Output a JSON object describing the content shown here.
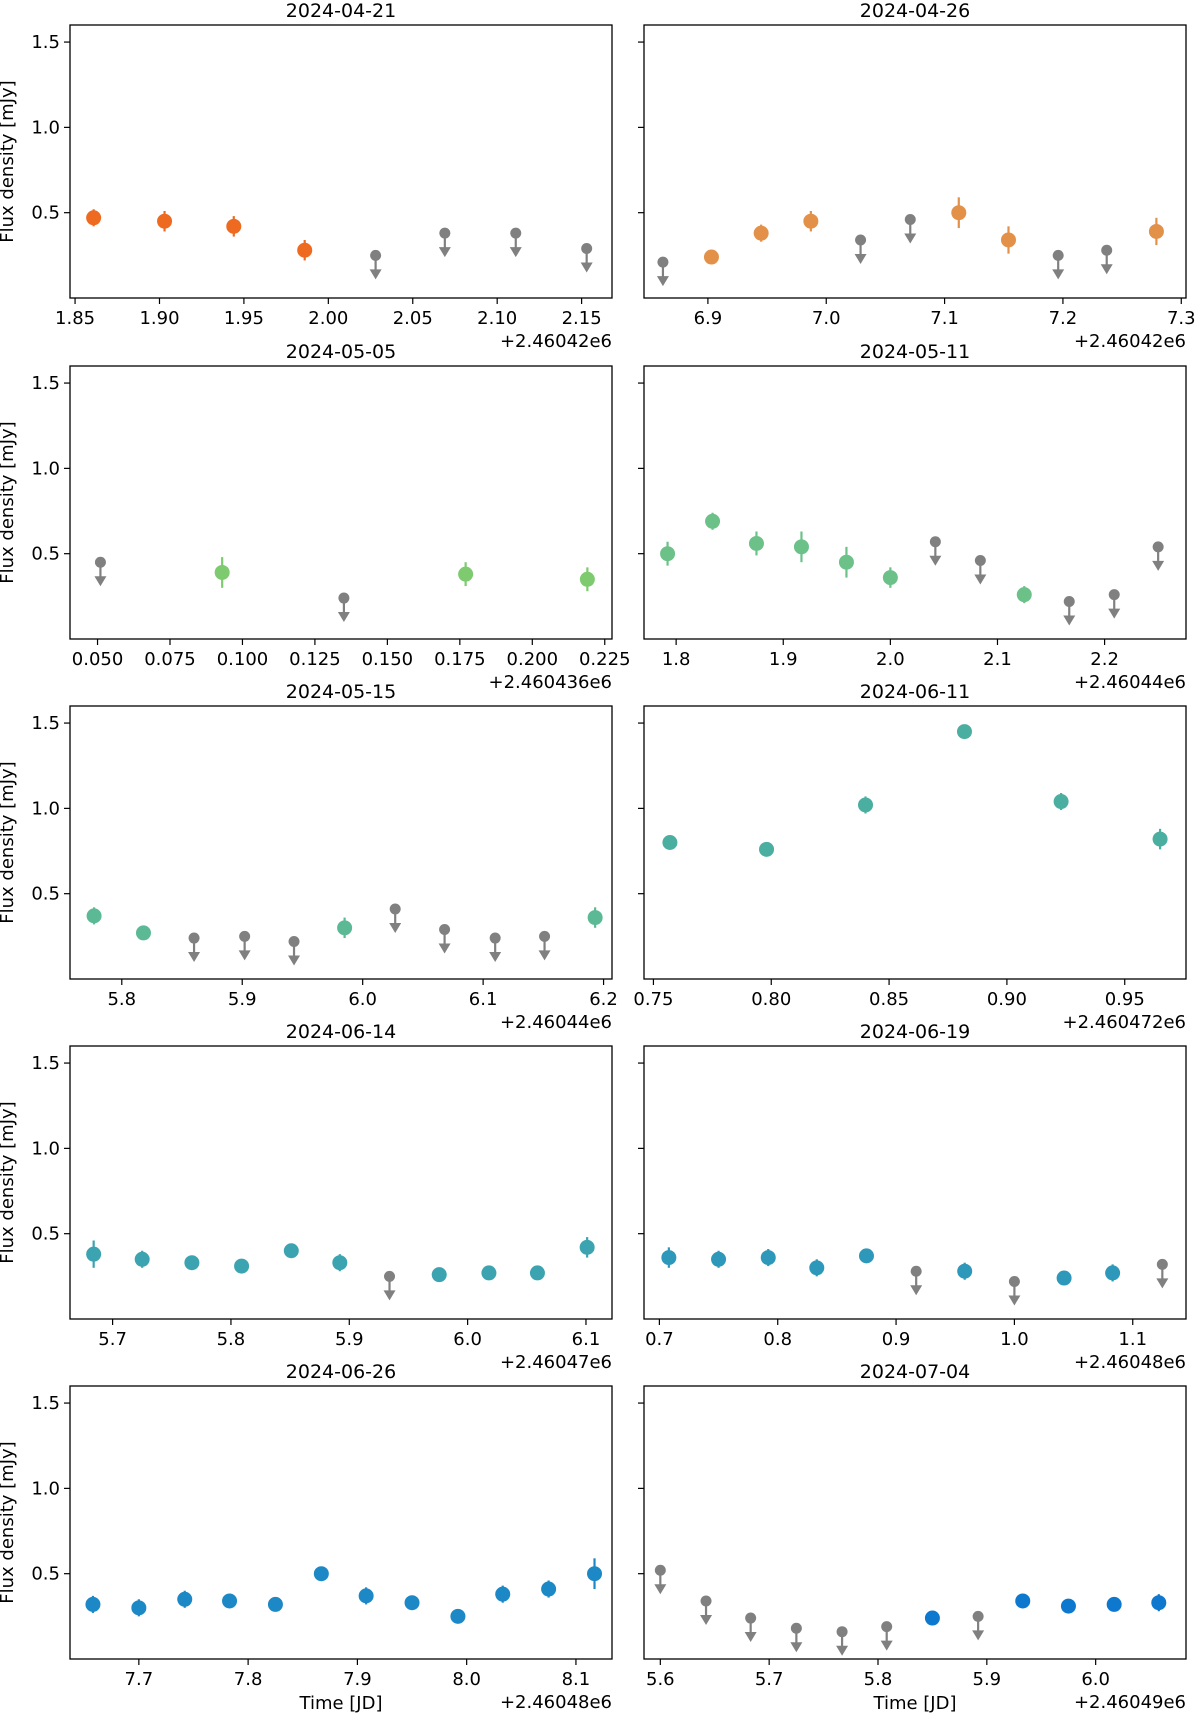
{
  "chart_data": [
    {
      "type": "scatter",
      "title": "2024-04-21",
      "xlabel": "",
      "ylabel": "Flux density [mJy]",
      "offset_label": "+2.46042e6",
      "ylim": [
        0.0,
        1.6
      ],
      "yticks": [
        0.5,
        1.0,
        1.5
      ],
      "ytick_labels": [
        "0.5",
        "1.0",
        "1.5"
      ],
      "xlim": [
        1.847,
        2.168
      ],
      "xticks": [
        1.85,
        1.9,
        1.95,
        2.0,
        2.05,
        2.1,
        2.15
      ],
      "xtick_labels": [
        "1.85",
        "1.90",
        "1.95",
        "2.00",
        "2.05",
        "2.10",
        "2.15"
      ],
      "color": "#ee6a21",
      "detections": [
        {
          "x": 1.861,
          "y": 0.47,
          "err": 0.05
        },
        {
          "x": 1.903,
          "y": 0.45,
          "err": 0.06
        },
        {
          "x": 1.944,
          "y": 0.42,
          "err": 0.06
        },
        {
          "x": 1.986,
          "y": 0.28,
          "err": 0.06
        }
      ],
      "upper_limits": [
        {
          "x": 2.028,
          "y": 0.25
        },
        {
          "x": 2.069,
          "y": 0.38
        },
        {
          "x": 2.111,
          "y": 0.38
        },
        {
          "x": 2.153,
          "y": 0.29
        }
      ]
    },
    {
      "type": "scatter",
      "title": "2024-04-26",
      "xlabel": "",
      "ylabel": "",
      "offset_label": "+2.46042e6",
      "ylim": [
        0.0,
        1.6
      ],
      "yticks": [
        0.5,
        1.0,
        1.5
      ],
      "ytick_labels": [
        "",
        "",
        ""
      ],
      "xlim": [
        6.846,
        7.304
      ],
      "xticks": [
        6.9,
        7.0,
        7.1,
        7.2,
        7.3
      ],
      "xtick_labels": [
        "6.9",
        "7.0",
        "7.1",
        "7.2",
        "7.3"
      ],
      "color": "#e39048",
      "detections": [
        {
          "x": 6.903,
          "y": 0.24,
          "err": 0.04
        },
        {
          "x": 6.945,
          "y": 0.38,
          "err": 0.05
        },
        {
          "x": 6.987,
          "y": 0.45,
          "err": 0.06
        },
        {
          "x": 7.112,
          "y": 0.5,
          "err": 0.09
        },
        {
          "x": 7.154,
          "y": 0.34,
          "err": 0.08
        },
        {
          "x": 7.279,
          "y": 0.39,
          "err": 0.08
        }
      ],
      "upper_limits": [
        {
          "x": 6.862,
          "y": 0.21
        },
        {
          "x": 7.029,
          "y": 0.34
        },
        {
          "x": 7.071,
          "y": 0.46
        },
        {
          "x": 7.196,
          "y": 0.25
        },
        {
          "x": 7.237,
          "y": 0.28
        }
      ]
    },
    {
      "type": "scatter",
      "title": "2024-05-05",
      "xlabel": "",
      "ylabel": "Flux density [mJy]",
      "offset_label": "+2.460436e6",
      "ylim": [
        0.0,
        1.6
      ],
      "yticks": [
        0.5,
        1.0,
        1.5
      ],
      "ytick_labels": [
        "0.5",
        "1.0",
        "1.5"
      ],
      "xlim": [
        0.0405,
        0.2275
      ],
      "xticks": [
        0.05,
        0.075,
        0.1,
        0.125,
        0.15,
        0.175,
        0.2,
        0.225
      ],
      "xtick_labels": [
        "0.050",
        "0.075",
        "0.100",
        "0.125",
        "0.150",
        "0.175",
        "0.200",
        "0.225"
      ],
      "color": "#7dca6f",
      "detections": [
        {
          "x": 0.093,
          "y": 0.39,
          "err": 0.09
        },
        {
          "x": 0.177,
          "y": 0.38,
          "err": 0.07
        },
        {
          "x": 0.219,
          "y": 0.35,
          "err": 0.07
        }
      ],
      "upper_limits": [
        {
          "x": 0.051,
          "y": 0.45
        },
        {
          "x": 0.135,
          "y": 0.24
        }
      ]
    },
    {
      "type": "scatter",
      "title": "2024-05-11",
      "xlabel": "",
      "ylabel": "",
      "offset_label": "+2.46044e6",
      "ylim": [
        0.0,
        1.6
      ],
      "yticks": [
        0.5,
        1.0,
        1.5
      ],
      "ytick_labels": [
        "",
        "",
        ""
      ],
      "xlim": [
        1.77,
        2.276
      ],
      "xticks": [
        1.8,
        1.9,
        2.0,
        2.1,
        2.2
      ],
      "xtick_labels": [
        "1.8",
        "1.9",
        "2.0",
        "2.1",
        "2.2"
      ],
      "color": "#6cc189",
      "detections": [
        {
          "x": 1.792,
          "y": 0.5,
          "err": 0.07
        },
        {
          "x": 1.834,
          "y": 0.69,
          "err": 0.05
        },
        {
          "x": 1.875,
          "y": 0.56,
          "err": 0.07
        },
        {
          "x": 1.917,
          "y": 0.54,
          "err": 0.09
        },
        {
          "x": 1.959,
          "y": 0.45,
          "err": 0.09
        },
        {
          "x": 2.0,
          "y": 0.36,
          "err": 0.06
        },
        {
          "x": 2.125,
          "y": 0.26,
          "err": 0.05
        }
      ],
      "upper_limits": [
        {
          "x": 2.042,
          "y": 0.57
        },
        {
          "x": 2.084,
          "y": 0.46
        },
        {
          "x": 2.167,
          "y": 0.22
        },
        {
          "x": 2.209,
          "y": 0.26
        },
        {
          "x": 2.25,
          "y": 0.54
        }
      ]
    },
    {
      "type": "scatter",
      "title": "2024-05-15",
      "xlabel": "",
      "ylabel": "Flux density [mJy]",
      "offset_label": "+2.46044e6",
      "ylim": [
        0.0,
        1.6
      ],
      "yticks": [
        0.5,
        1.0,
        1.5
      ],
      "ytick_labels": [
        "0.5",
        "1.0",
        "1.5"
      ],
      "xlim": [
        5.757,
        6.207
      ],
      "xticks": [
        5.8,
        5.9,
        6.0,
        6.1,
        6.2
      ],
      "xtick_labels": [
        "5.8",
        "5.9",
        "6.0",
        "6.1",
        "6.2"
      ],
      "color": "#5bba95",
      "detections": [
        {
          "x": 5.777,
          "y": 0.37,
          "err": 0.05
        },
        {
          "x": 5.818,
          "y": 0.27,
          "err": 0.04
        },
        {
          "x": 5.985,
          "y": 0.3,
          "err": 0.06
        },
        {
          "x": 6.193,
          "y": 0.36,
          "err": 0.06
        }
      ],
      "upper_limits": [
        {
          "x": 5.86,
          "y": 0.24
        },
        {
          "x": 5.902,
          "y": 0.25
        },
        {
          "x": 5.943,
          "y": 0.22
        },
        {
          "x": 6.027,
          "y": 0.41
        },
        {
          "x": 6.068,
          "y": 0.29
        },
        {
          "x": 6.11,
          "y": 0.24
        },
        {
          "x": 6.151,
          "y": 0.25
        }
      ]
    },
    {
      "type": "scatter",
      "title": "2024-06-11",
      "xlabel": "",
      "ylabel": "",
      "offset_label": "+2.460472e6",
      "ylim": [
        0.0,
        1.6
      ],
      "yticks": [
        0.5,
        1.0,
        1.5
      ],
      "ytick_labels": [
        "",
        "",
        ""
      ],
      "xlim": [
        0.746,
        0.976
      ],
      "xticks": [
        0.75,
        0.8,
        0.85,
        0.9,
        0.95
      ],
      "xtick_labels": [
        "0.75",
        "0.80",
        "0.85",
        "0.90",
        "0.95"
      ],
      "color": "#4aaea0",
      "detections": [
        {
          "x": 0.757,
          "y": 0.8,
          "err": 0.04
        },
        {
          "x": 0.798,
          "y": 0.76,
          "err": 0.04
        },
        {
          "x": 0.84,
          "y": 1.02,
          "err": 0.05
        },
        {
          "x": 0.882,
          "y": 1.45,
          "err": 0.04
        },
        {
          "x": 0.923,
          "y": 1.04,
          "err": 0.05
        },
        {
          "x": 0.965,
          "y": 0.82,
          "err": 0.06
        }
      ],
      "upper_limits": []
    },
    {
      "type": "scatter",
      "title": "2024-06-14",
      "xlabel": "",
      "ylabel": "Flux density [mJy]",
      "offset_label": "+2.46047e6",
      "ylim": [
        0.0,
        1.6
      ],
      "yticks": [
        0.5,
        1.0,
        1.5
      ],
      "ytick_labels": [
        "0.5",
        "1.0",
        "1.5"
      ],
      "xlim": [
        5.664,
        6.122
      ],
      "xticks": [
        5.7,
        5.8,
        5.9,
        6.0,
        6.1
      ],
      "xtick_labels": [
        "5.7",
        "5.8",
        "5.9",
        "6.0",
        "6.1"
      ],
      "color": "#3ca3b0",
      "detections": [
        {
          "x": 5.684,
          "y": 0.38,
          "err": 0.08
        },
        {
          "x": 5.725,
          "y": 0.35,
          "err": 0.05
        },
        {
          "x": 5.767,
          "y": 0.33,
          "err": 0.04
        },
        {
          "x": 5.809,
          "y": 0.31,
          "err": 0.04
        },
        {
          "x": 5.851,
          "y": 0.4,
          "err": 0.04
        },
        {
          "x": 5.892,
          "y": 0.33,
          "err": 0.05
        },
        {
          "x": 5.976,
          "y": 0.26,
          "err": 0.04
        },
        {
          "x": 6.018,
          "y": 0.27,
          "err": 0.04
        },
        {
          "x": 6.059,
          "y": 0.27,
          "err": 0.04
        },
        {
          "x": 6.101,
          "y": 0.42,
          "err": 0.06
        }
      ],
      "upper_limits": [
        {
          "x": 5.934,
          "y": 0.25
        }
      ]
    },
    {
      "type": "scatter",
      "title": "2024-06-19",
      "xlabel": "",
      "ylabel": "",
      "offset_label": "+2.46048e6",
      "ylim": [
        0.0,
        1.6
      ],
      "yticks": [
        0.5,
        1.0,
        1.5
      ],
      "ytick_labels": [
        "",
        "",
        ""
      ],
      "xlim": [
        0.687,
        1.145
      ],
      "xticks": [
        0.7,
        0.8,
        0.9,
        1.0,
        1.1
      ],
      "xtick_labels": [
        "0.7",
        "0.8",
        "0.9",
        "1.0",
        "1.1"
      ],
      "color": "#2e98ba",
      "detections": [
        {
          "x": 0.708,
          "y": 0.36,
          "err": 0.06
        },
        {
          "x": 0.75,
          "y": 0.35,
          "err": 0.05
        },
        {
          "x": 0.792,
          "y": 0.36,
          "err": 0.05
        },
        {
          "x": 0.833,
          "y": 0.3,
          "err": 0.05
        },
        {
          "x": 0.875,
          "y": 0.37,
          "err": 0.04
        },
        {
          "x": 0.958,
          "y": 0.28,
          "err": 0.05
        },
        {
          "x": 1.042,
          "y": 0.24,
          "err": 0.04
        },
        {
          "x": 1.083,
          "y": 0.27,
          "err": 0.05
        }
      ],
      "upper_limits": [
        {
          "x": 0.917,
          "y": 0.28
        },
        {
          "x": 1.0,
          "y": 0.22
        },
        {
          "x": 1.125,
          "y": 0.32
        }
      ]
    },
    {
      "type": "scatter",
      "title": "2024-06-26",
      "xlabel": "Time [JD]",
      "ylabel": "Flux density [mJy]",
      "offset_label": "+2.46048e6",
      "ylim": [
        0.0,
        1.6
      ],
      "yticks": [
        0.5,
        1.0,
        1.5
      ],
      "ytick_labels": [
        "0.5",
        "1.0",
        "1.5"
      ],
      "xlim": [
        7.637,
        8.133
      ],
      "xticks": [
        7.7,
        7.8,
        7.9,
        8.0,
        8.1
      ],
      "xtick_labels": [
        "7.7",
        "7.8",
        "7.9",
        "8.0",
        "8.1"
      ],
      "color": "#1c88c6",
      "detections": [
        {
          "x": 7.658,
          "y": 0.32,
          "err": 0.05
        },
        {
          "x": 7.7,
          "y": 0.3,
          "err": 0.05
        },
        {
          "x": 7.742,
          "y": 0.35,
          "err": 0.05
        },
        {
          "x": 7.783,
          "y": 0.34,
          "err": 0.04
        },
        {
          "x": 7.825,
          "y": 0.32,
          "err": 0.04
        },
        {
          "x": 7.867,
          "y": 0.5,
          "err": 0.03
        },
        {
          "x": 7.908,
          "y": 0.37,
          "err": 0.05
        },
        {
          "x": 7.95,
          "y": 0.33,
          "err": 0.04
        },
        {
          "x": 7.992,
          "y": 0.25,
          "err": 0.04
        },
        {
          "x": 8.033,
          "y": 0.38,
          "err": 0.05
        },
        {
          "x": 8.075,
          "y": 0.41,
          "err": 0.05
        },
        {
          "x": 8.117,
          "y": 0.5,
          "err": 0.09
        }
      ],
      "upper_limits": []
    },
    {
      "type": "scatter",
      "title": "2024-07-04",
      "xlabel": "Time [JD]",
      "ylabel": "",
      "offset_label": "+2.46049e6",
      "ylim": [
        0.0,
        1.6
      ],
      "yticks": [
        0.5,
        1.0,
        1.5
      ],
      "ytick_labels": [
        "",
        "",
        ""
      ],
      "xlim": [
        5.585,
        6.083
      ],
      "xticks": [
        5.6,
        5.7,
        5.8,
        5.9,
        6.0
      ],
      "xtick_labels": [
        "5.6",
        "5.7",
        "5.8",
        "5.9",
        "6.0"
      ],
      "color": "#0e78ce",
      "detections": [
        {
          "x": 5.85,
          "y": 0.24,
          "err": 0.04
        },
        {
          "x": 5.933,
          "y": 0.34,
          "err": 0.04
        },
        {
          "x": 5.975,
          "y": 0.31,
          "err": 0.03
        },
        {
          "x": 6.017,
          "y": 0.32,
          "err": 0.04
        },
        {
          "x": 6.058,
          "y": 0.33,
          "err": 0.05
        }
      ],
      "upper_limits": [
        {
          "x": 5.6,
          "y": 0.52
        },
        {
          "x": 5.642,
          "y": 0.34
        },
        {
          "x": 5.683,
          "y": 0.24
        },
        {
          "x": 5.725,
          "y": 0.18
        },
        {
          "x": 5.767,
          "y": 0.16
        },
        {
          "x": 5.808,
          "y": 0.19
        },
        {
          "x": 5.892,
          "y": 0.25
        }
      ]
    }
  ],
  "colors": {
    "upper_limit": "#808080",
    "axes": "#000000"
  }
}
